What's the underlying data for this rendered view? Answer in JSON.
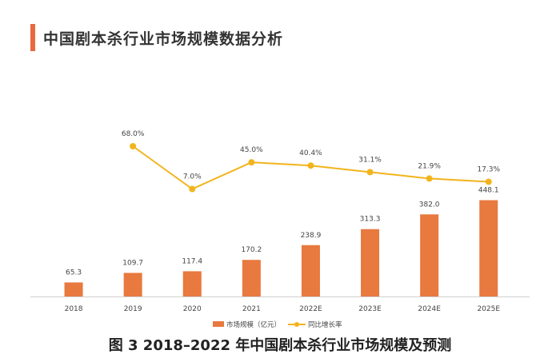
{
  "header": {
    "title": "中国剧本杀行业市场规模数据分析"
  },
  "caption": "图 3  2018–2022 年中国剧本杀行业市场规模及预测",
  "colors": {
    "bar": "#e8793f",
    "line": "#f2b41c",
    "accent": "#e8693f"
  },
  "chart_data": {
    "type": "bar",
    "categories": [
      "2018",
      "2019",
      "2020",
      "2021",
      "2022E",
      "2023E",
      "2024E",
      "2025E"
    ],
    "series": [
      {
        "name": "市场规模（亿元）",
        "type": "bar",
        "values": [
          65.3,
          109.7,
          117.4,
          170.2,
          238.9,
          313.3,
          382.0,
          448.1
        ],
        "labels": [
          "65.3",
          "109.7",
          "117.4",
          "170.2",
          "238.9",
          "313.3",
          "382.0",
          "448.1"
        ]
      },
      {
        "name": "同比增长率",
        "type": "line",
        "values": [
          null,
          68.0,
          7.0,
          45.0,
          40.4,
          31.1,
          21.9,
          17.3
        ],
        "labels": [
          "",
          "68.0%",
          "7.0%",
          "45.0%",
          "40.4%",
          "31.1%",
          "21.9%",
          "17.3%"
        ]
      }
    ],
    "legend_position": "bottom",
    "grid": false
  }
}
